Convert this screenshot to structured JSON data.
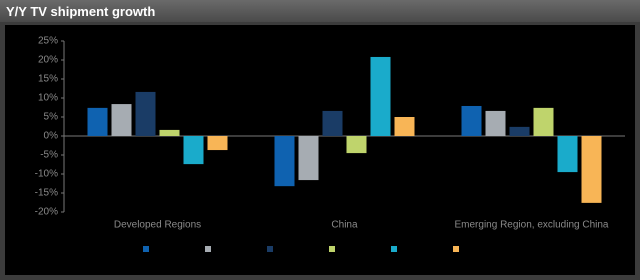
{
  "chart_data": {
    "type": "bar",
    "title": "Y/Y TV shipment growth",
    "categories": [
      "Developed Regions",
      "China",
      "Emerging Region, excluding China"
    ],
    "series": [
      {
        "color": "#0f62b0",
        "values": [
          7.4,
          -13.2,
          7.9
        ]
      },
      {
        "color": "#a6acb2",
        "values": [
          8.4,
          -11.6,
          6.6
        ]
      },
      {
        "color": "#1a3c66",
        "values": [
          11.6,
          6.6,
          2.4
        ]
      },
      {
        "color": "#bfd46c",
        "values": [
          1.6,
          -4.5,
          7.4
        ]
      },
      {
        "color": "#1aabcb",
        "values": [
          -7.4,
          20.8,
          -9.5
        ]
      },
      {
        "color": "#f8b556",
        "values": [
          -3.7,
          5,
          -17.6
        ]
      }
    ],
    "ylim": [
      -20,
      25
    ],
    "yticks": [
      {
        "value": -20,
        "label": "-20%"
      },
      {
        "value": -15,
        "label": "-15%"
      },
      {
        "value": -10,
        "label": "-10%"
      },
      {
        "value": -5,
        "label": "-5%"
      },
      {
        "value": 0,
        "label": "0%"
      },
      {
        "value": 5,
        "label": "5%"
      },
      {
        "value": 10,
        "label": "10%"
      },
      {
        "value": 15,
        "label": "15%"
      },
      {
        "value": 20,
        "label": "20%"
      },
      {
        "value": 25,
        "label": "25%"
      }
    ]
  }
}
